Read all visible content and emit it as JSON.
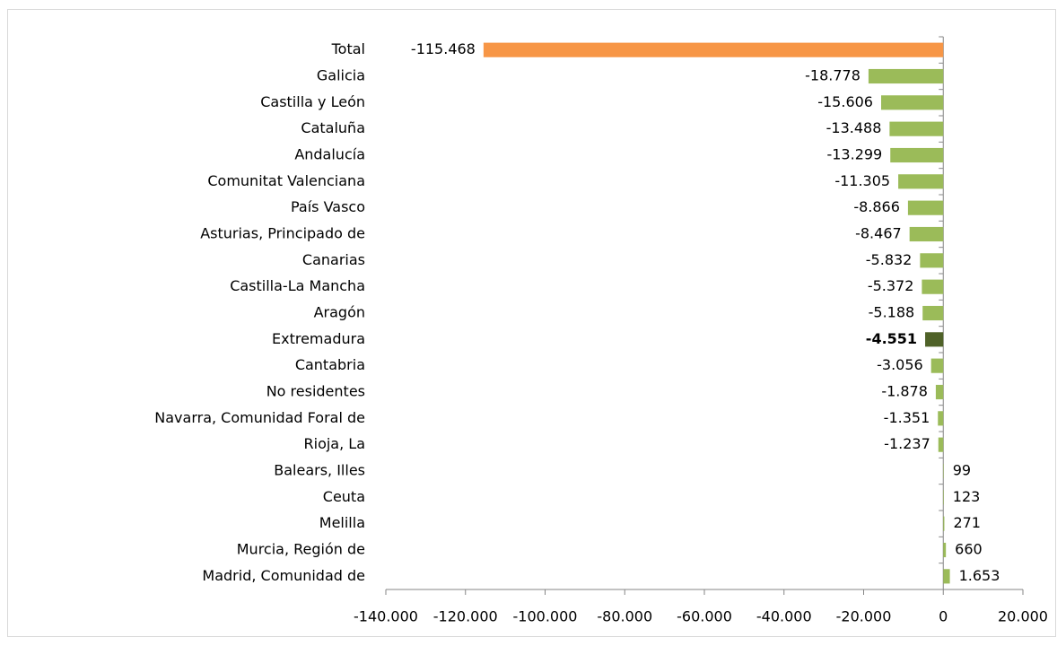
{
  "chart_data": {
    "type": "bar",
    "orientation": "horizontal",
    "categories": [
      "Total",
      "Galicia",
      "Castilla y León",
      "Cataluña",
      "Andalucía",
      "Comunitat Valenciana",
      "País Vasco",
      "Asturias, Principado de",
      "Canarias",
      "Castilla-La Mancha",
      "Aragón",
      "Extremadura",
      "Cantabria",
      "No residentes",
      "Navarra, Comunidad Foral de",
      "Rioja, La",
      "Balears, Illes",
      "Ceuta",
      "Melilla",
      "Murcia, Región de",
      "Madrid, Comunidad de"
    ],
    "values": [
      -115468,
      -18778,
      -15606,
      -13488,
      -13299,
      -11305,
      -8866,
      -8467,
      -5832,
      -5372,
      -5188,
      -4551,
      -3056,
      -1878,
      -1351,
      -1237,
      99,
      123,
      271,
      660,
      1653
    ],
    "value_labels": [
      "-115.468",
      "-18.778",
      "-15.606",
      "-13.488",
      "-13.299",
      "-11.305",
      "-8.866",
      "-8.467",
      "-5.832",
      "-5.372",
      "-5.188",
      "-4.551",
      "-3.056",
      "-1.878",
      "-1.351",
      "-1.237",
      "99",
      "123",
      "271",
      "660",
      "1.653"
    ],
    "colors": [
      "#f79646",
      "#9bbb59",
      "#9bbb59",
      "#9bbb59",
      "#9bbb59",
      "#9bbb59",
      "#9bbb59",
      "#9bbb59",
      "#9bbb59",
      "#9bbb59",
      "#9bbb59",
      "#4f6228",
      "#9bbb59",
      "#9bbb59",
      "#9bbb59",
      "#9bbb59",
      "#9bbb59",
      "#9bbb59",
      "#9bbb59",
      "#9bbb59",
      "#9bbb59"
    ],
    "bold_labels": [
      false,
      false,
      false,
      false,
      false,
      false,
      false,
      false,
      false,
      false,
      false,
      true,
      false,
      false,
      false,
      false,
      false,
      false,
      false,
      false,
      false
    ],
    "xlim": [
      -140000,
      20000
    ],
    "xticks": [
      {
        "value": -140000,
        "label": "-140.000"
      },
      {
        "value": -120000,
        "label": "-120.000"
      },
      {
        "value": -100000,
        "label": "-100.000"
      },
      {
        "value": -80000,
        "label": "-80.000"
      },
      {
        "value": -60000,
        "label": "-60.000"
      },
      {
        "value": -40000,
        "label": "-40.000"
      },
      {
        "value": -20000,
        "label": "-20.000"
      },
      0,
      {
        "value": 20000,
        "label": "20.000"
      }
    ],
    "grid": false
  }
}
